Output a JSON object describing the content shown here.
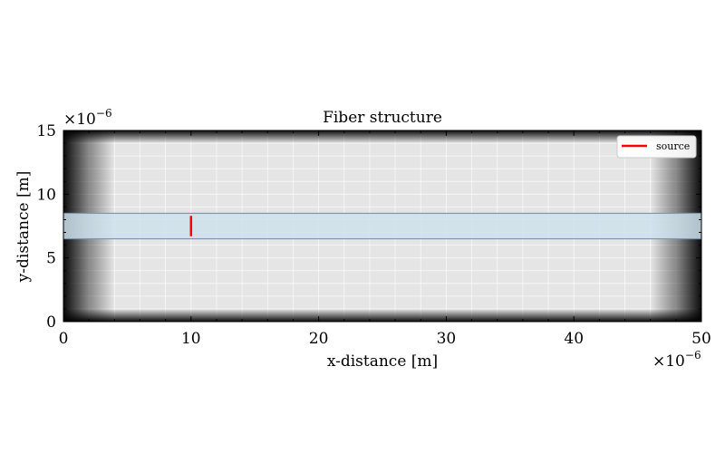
{
  "chart_data": {
    "type": "heatmap",
    "title": "Fiber structure",
    "xlabel": "x-distance [m]",
    "ylabel": "y-distance [m]",
    "x_multiplier_label": "×10",
    "x_multiplier_exp": "−6",
    "y_multiplier_label": "×10",
    "y_multiplier_exp": "−6",
    "xlim": [
      0,
      50
    ],
    "ylim": [
      0,
      15
    ],
    "xticks": [
      0,
      10,
      20,
      30,
      40,
      50
    ],
    "yticks": [
      0,
      5,
      10,
      15
    ],
    "x_minor_step": 2,
    "y_minor_step": 1,
    "grid": true,
    "background": {
      "description": "absorbing boundary layers darken toward the domain edges",
      "interior_color": "#e5e5e5",
      "edge_color": "#000000",
      "pml_x_thickness": 4,
      "pml_y_thickness": 1
    },
    "fiber_core": {
      "x_range": [
        0,
        50
      ],
      "y_range": [
        6.5,
        8.5
      ],
      "fill_color": "#cfe2ec",
      "edge_color": "#7a8cf2"
    },
    "series": [
      {
        "name": "source",
        "color": "#ff0000",
        "x": [
          10,
          10
        ],
        "y": [
          6.7,
          8.3
        ]
      }
    ],
    "legend": {
      "placement": "top-right",
      "entries": [
        "source"
      ]
    }
  }
}
